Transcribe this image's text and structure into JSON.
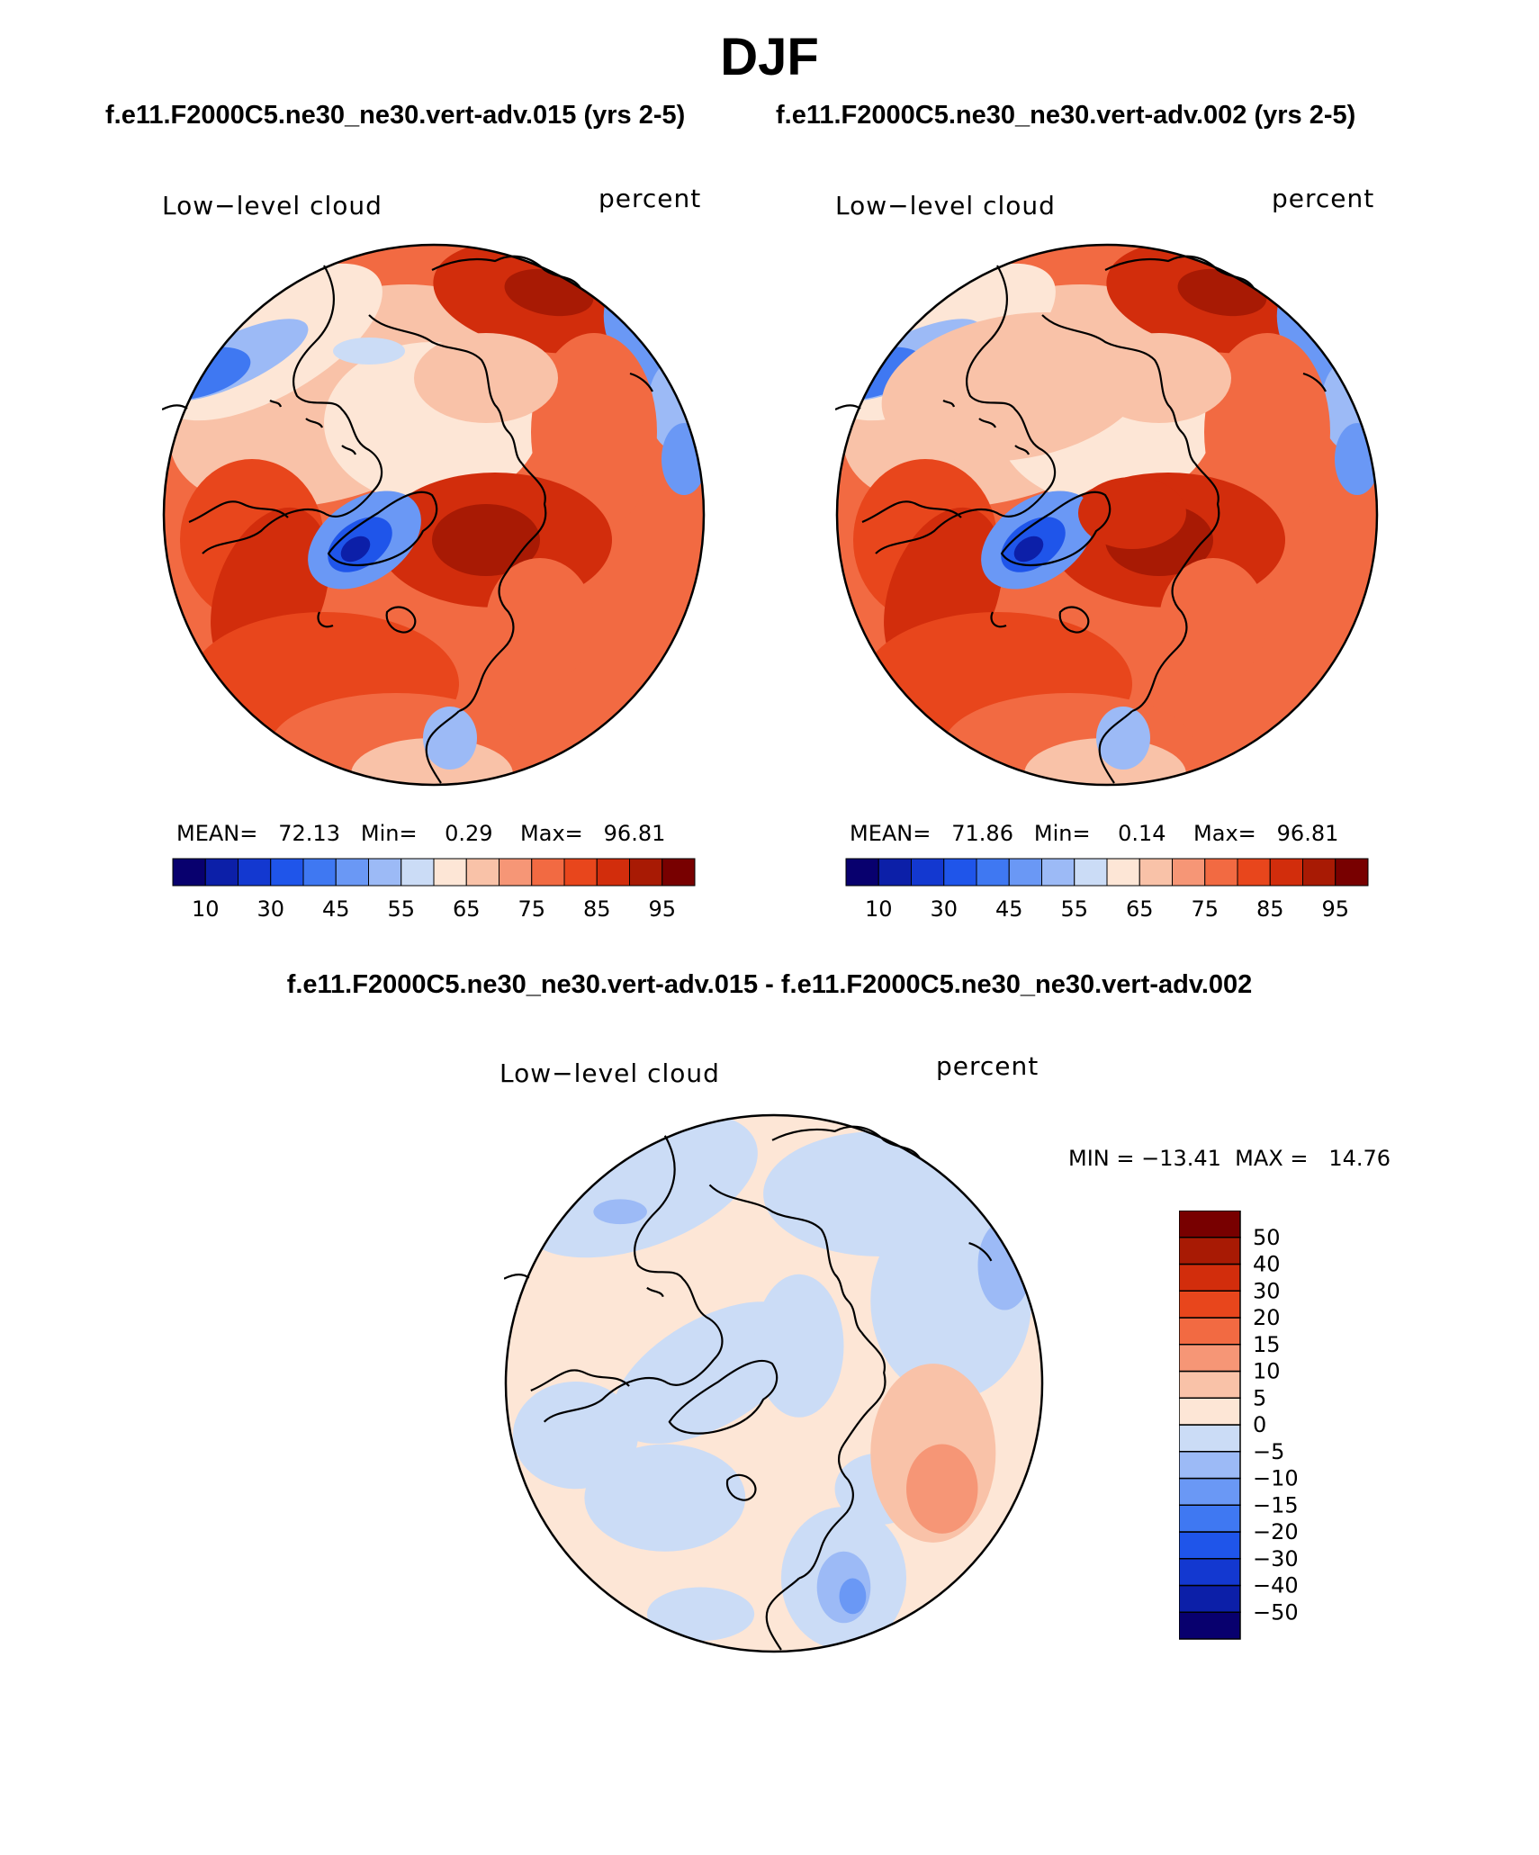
{
  "title": "DJF",
  "panels": [
    {
      "case": "f.e11.F2000C5.ne30_ne30.vert-adv.015 (yrs 2-5)",
      "variable": "Low−level cloud",
      "units": "percent",
      "stats": {
        "mean_label": "MEAN=",
        "mean": "72.13",
        "min_label": "Min=",
        "min": "0.29",
        "max_label": "Max=",
        "max": "96.81"
      }
    },
    {
      "case": "f.e11.F2000C5.ne30_ne30.vert-adv.002 (yrs 2-5)",
      "variable": "Low−level cloud",
      "units": "percent",
      "stats": {
        "mean_label": "MEAN=",
        "mean": "71.86",
        "min_label": "Min=",
        "min": "0.14",
        "max_label": "Max=",
        "max": "96.81"
      }
    }
  ],
  "difference": {
    "title": "f.e11.F2000C5.ne30_ne30.vert-adv.015 - f.e11.F2000C5.ne30_ne30.vert-adv.002",
    "variable": "Low−level cloud",
    "units": "percent",
    "minmax_text": "MIN = −13.41  MAX =   14.76"
  },
  "chart_data": [
    {
      "type": "heatmap",
      "projection": "north polar stereographic",
      "field": "Low-level cloud (percent)",
      "colorbar": {
        "orientation": "horizontal",
        "levels": [
          10,
          20,
          30,
          40,
          45,
          50,
          55,
          60,
          65,
          70,
          75,
          80,
          85,
          90,
          95
        ],
        "tick_labels": [
          "10",
          "30",
          "45",
          "55",
          "65",
          "75",
          "85",
          "95"
        ],
        "colors": [
          "#08006e",
          "#0c1fa8",
          "#1338d0",
          "#1f55ea",
          "#3f78f2",
          "#6a98f5",
          "#9cbaf6",
          "#cbdcf6",
          "#fde6d6",
          "#f9c2a8",
          "#f69676",
          "#f26a42",
          "#e8461c",
          "#d22d0c",
          "#a81a04",
          "#780000"
        ]
      }
    },
    {
      "type": "heatmap",
      "projection": "north polar stereographic",
      "field": "Low-level cloud difference (percent)",
      "colorbar": {
        "orientation": "vertical",
        "levels": [
          -50,
          -40,
          -30,
          -20,
          -15,
          -10,
          -5,
          0,
          5,
          10,
          15,
          20,
          30,
          40,
          50
        ],
        "tick_labels": [
          "−50",
          "−40",
          "−30",
          "−20",
          "−15",
          "−10",
          "−5",
          "0",
          "5",
          "10",
          "15",
          "20",
          "30",
          "40",
          "50"
        ],
        "colors": [
          "#08006e",
          "#0c1fa8",
          "#1338d0",
          "#1f55ea",
          "#3f78f2",
          "#6a98f5",
          "#9cbaf6",
          "#cbdcf6",
          "#fde6d6",
          "#f9c2a8",
          "#f69676",
          "#f26a42",
          "#e8461c",
          "#d22d0c",
          "#a81a04",
          "#780000"
        ]
      }
    }
  ]
}
